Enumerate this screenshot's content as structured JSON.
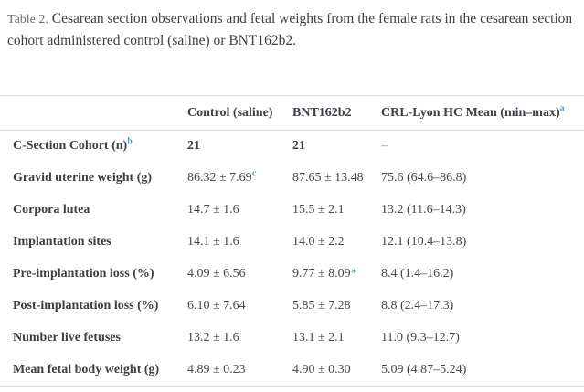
{
  "caption": {
    "label": "Table 2.",
    "text": "Cesarean section observations and fetal weights from the female rats in the cesarean section cohort administered control (saline) or BNT162b2."
  },
  "table": {
    "columns": [
      {
        "label": ""
      },
      {
        "label": "Control (saline)"
      },
      {
        "label": "BNT162b2"
      },
      {
        "label": "CRL-Lyon HC Mean (min–max)",
        "sup": "a"
      }
    ],
    "rows": [
      {
        "label": "C-Section Cohort (n)",
        "label_sup": "b",
        "values": [
          {
            "text": "21"
          },
          {
            "text": "21"
          },
          {
            "text": "–"
          }
        ]
      },
      {
        "label": "Gravid uterine weight (g)",
        "values": [
          {
            "text": "86.32 ± 7.69",
            "sup": "c"
          },
          {
            "text": "87.65 ± 13.48"
          },
          {
            "text": "75.6 (64.6–86.8)"
          }
        ]
      },
      {
        "label": "Corpora lutea",
        "values": [
          {
            "text": "14.7 ± 1.6"
          },
          {
            "text": "15.5 ± 2.1"
          },
          {
            "text": "13.2 (11.6–14.3)"
          }
        ]
      },
      {
        "label": "Implantation sites",
        "values": [
          {
            "text": "14.1 ± 1.6"
          },
          {
            "text": "14.0 ± 2.2"
          },
          {
            "text": "12.1 (10.4–13.8)"
          }
        ]
      },
      {
        "label": "Pre-implantation loss (%)",
        "values": [
          {
            "text": "4.09 ± 6.56"
          },
          {
            "text": "9.77 ± 8.09",
            "star": "*"
          },
          {
            "text": "8.4 (1.4–16.2)"
          }
        ]
      },
      {
        "label": "Post-implantation loss (%)",
        "values": [
          {
            "text": "6.10 ± 7.64"
          },
          {
            "text": "5.85 ± 7.28"
          },
          {
            "text": "8.8 (2.4–17.3)"
          }
        ]
      },
      {
        "label": "Number live fetuses",
        "values": [
          {
            "text": "13.2 ± 1.6"
          },
          {
            "text": "13.1 ± 2.1"
          },
          {
            "text": "11.0 (9.3–12.7)"
          }
        ]
      },
      {
        "label": "Mean fetal body weight (g)",
        "values": [
          {
            "text": "4.89 ± 0.23"
          },
          {
            "text": "4.90 ± 0.30"
          },
          {
            "text": "5.09 (4.87–5.24)"
          }
        ]
      }
    ]
  },
  "colors": {
    "text": "#3b4045",
    "superscript_blue": "#4e9bd2",
    "border": "#dcdcdc",
    "muted_dash": "#8d8d8d"
  }
}
